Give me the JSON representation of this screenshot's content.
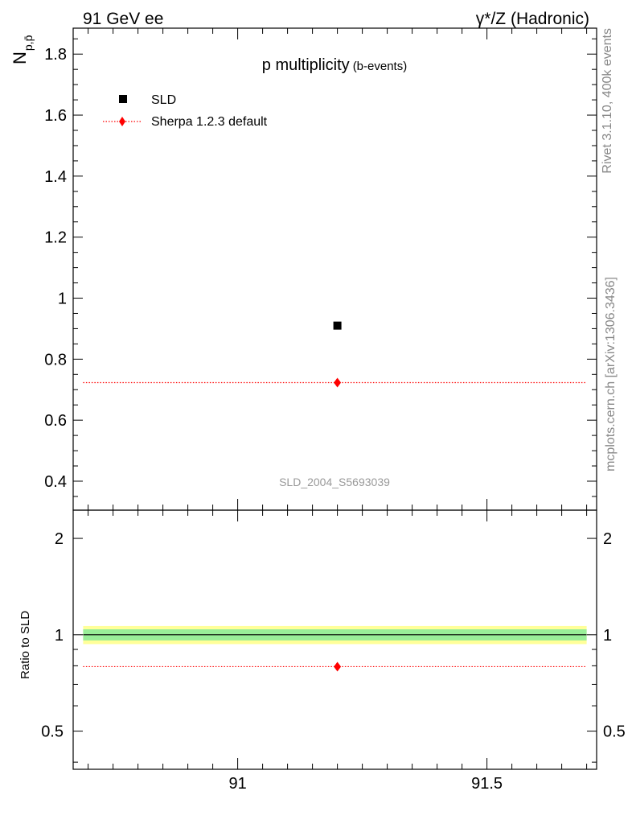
{
  "header": {
    "left": "91 GeV ee",
    "right": "γ*/Z (Hadronic)"
  },
  "side_text": {
    "rivet": "Rivet 3.1.10,  400k events",
    "mcplots": "mcplots.cern.ch [arXiv:1306.3436]"
  },
  "chart_data": [
    {
      "type": "scatter",
      "title": "p multiplicity",
      "title_suffix": "(b-events)",
      "watermark": "SLD_2004_S5693039",
      "ylabel": "N",
      "ylabel_sub": "p,p̄",
      "xlim": [
        90.67,
        91.72
      ],
      "ylim": [
        0.305,
        1.885
      ],
      "yticks": [
        0.4,
        0.6,
        0.8,
        1.0,
        1.2,
        1.4,
        1.6,
        1.8
      ],
      "ytick_labels": [
        "0.4",
        "0.6",
        "0.8",
        "1",
        "1.2",
        "1.4",
        "1.6",
        "1.8"
      ],
      "legend_position": "top-left",
      "series": [
        {
          "name": "SLD",
          "marker": "square",
          "color": "#000000",
          "x": [
            91.2
          ],
          "y": [
            0.91
          ]
        },
        {
          "name": "Sherpa 1.2.3 default",
          "marker": "diamond",
          "line": "dotted",
          "color": "#ff0000",
          "x": [
            91.2
          ],
          "y": [
            0.723
          ],
          "xrange": [
            90.69,
            91.7
          ]
        }
      ]
    },
    {
      "type": "scatter",
      "ylabel": "Ratio to SLD",
      "yscale": "log",
      "xlim": [
        90.67,
        91.72
      ],
      "ylim": [
        0.38,
        2.45
      ],
      "yticks": [
        0.5,
        1,
        2
      ],
      "ytick_labels": [
        "0.5",
        "1",
        "2"
      ],
      "xticks": [
        91,
        91.5
      ],
      "xtick_labels": [
        "91",
        "91.5"
      ],
      "bands": [
        {
          "name": "outer",
          "color": "#ffff99",
          "low": 0.935,
          "high": 1.065
        },
        {
          "name": "inner",
          "color": "#99ee99",
          "low": 0.96,
          "high": 1.04
        }
      ],
      "series": [
        {
          "name": "Sherpa 1.2.3 default",
          "marker": "diamond",
          "line": "dotted",
          "color": "#ff0000",
          "x": [
            91.2
          ],
          "y": [
            0.795
          ],
          "xrange": [
            90.69,
            91.7
          ]
        }
      ],
      "reference_line": 1
    }
  ]
}
